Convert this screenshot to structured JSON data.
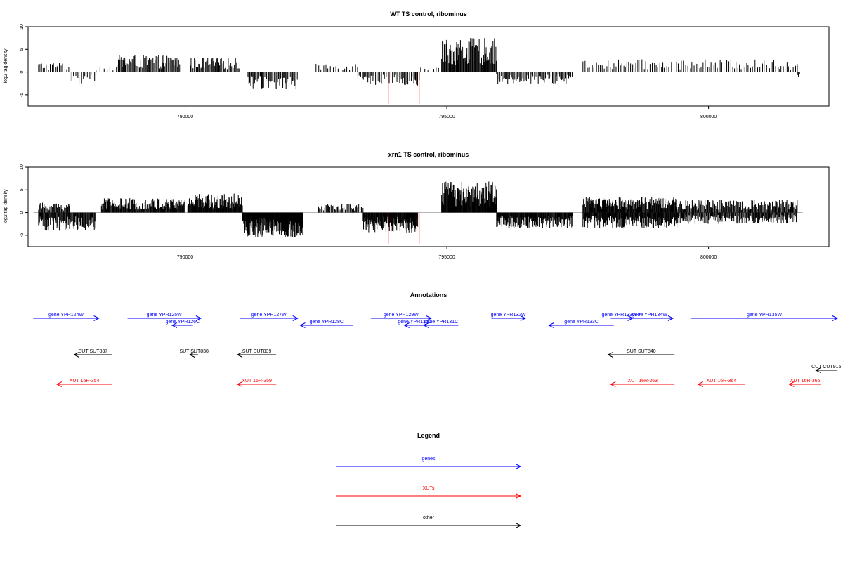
{
  "chart_data": [
    {
      "type": "bar",
      "title": "WT TS control, ribominus",
      "ylabel": "log2 tag density",
      "xlim": [
        787000,
        802300
      ],
      "ylim": [
        -7.5,
        10
      ],
      "x_ticks": [
        790000,
        795000,
        800000
      ],
      "x_tick_labels": [
        "790000",
        "795000",
        "800000"
      ],
      "y_ticks": [
        -5,
        0,
        5,
        10
      ],
      "y_tick_labels": [
        "-5",
        "0",
        "5",
        "10"
      ],
      "grid": false,
      "bar_color": "#000000",
      "highlight_color": "#ff0000",
      "segments": [
        {
          "range": [
            787200,
            787800
          ],
          "amp": 2.2,
          "sign": 1,
          "step": 35
        },
        {
          "range": [
            787800,
            788300
          ],
          "amp": 2.8,
          "sign": -1,
          "step": 35
        },
        {
          "range": [
            788300,
            788700
          ],
          "amp": 1.5,
          "sign": 1,
          "step": 60
        },
        {
          "range": [
            788700,
            789900
          ],
          "amp": 3.8,
          "sign": 1,
          "step": 18
        },
        {
          "range": [
            790100,
            791050
          ],
          "amp": 3.2,
          "sign": 1,
          "step": 20
        },
        {
          "range": [
            791200,
            792150
          ],
          "amp": 3.8,
          "sign": -1,
          "step": 18
        },
        {
          "range": [
            792500,
            793300
          ],
          "amp": 2.0,
          "sign": 1,
          "step": 45
        },
        {
          "range": [
            793300,
            794500
          ],
          "amp": 3.0,
          "sign": -1,
          "step": 25
        },
        {
          "range": [
            794500,
            794850
          ],
          "amp": 1.2,
          "sign": 1,
          "step": 60
        },
        {
          "range": [
            794900,
            795950
          ],
          "amp": 7.5,
          "sign": 1,
          "step": 12
        },
        {
          "range": [
            795950,
            797400
          ],
          "amp": 2.6,
          "sign": -1,
          "step": 22
        },
        {
          "range": [
            797600,
            801700
          ],
          "amp": 2.8,
          "sign": 1,
          "step": 40
        },
        {
          "range": [
            801700,
            801750
          ],
          "amp": 1.2,
          "sign": -1,
          "step": 20
        }
      ],
      "highlights": [
        {
          "x": 793880,
          "y": -7.0
        },
        {
          "x": 794470,
          "y": -7.0
        }
      ]
    },
    {
      "type": "bar",
      "title": "xrn1 TS control, ribominus",
      "ylabel": "log2 tag density",
      "xlim": [
        787000,
        802300
      ],
      "ylim": [
        -7.5,
        10
      ],
      "x_ticks": [
        790000,
        795000,
        800000
      ],
      "x_tick_labels": [
        "790000",
        "795000",
        "800000"
      ],
      "y_ticks": [
        -5,
        0,
        5,
        10
      ],
      "y_tick_labels": [
        "-5",
        "0",
        "5",
        "10"
      ],
      "grid": false,
      "bar_color": "#000000",
      "highlight_color": "#ff0000",
      "segments": [
        {
          "range": [
            787200,
            787800
          ],
          "amp": 2.2,
          "sign": 1,
          "step": 14
        },
        {
          "range": [
            787200,
            788300
          ],
          "amp": 4.0,
          "sign": -1,
          "step": 12
        },
        {
          "range": [
            788400,
            790000
          ],
          "amp": 3.2,
          "sign": 1,
          "step": 11
        },
        {
          "range": [
            790050,
            791100
          ],
          "amp": 4.2,
          "sign": 1,
          "step": 9
        },
        {
          "range": [
            791100,
            792250
          ],
          "amp": 5.5,
          "sign": -1,
          "step": 7
        },
        {
          "range": [
            792550,
            793400
          ],
          "amp": 2.0,
          "sign": 1,
          "step": 20
        },
        {
          "range": [
            793400,
            794450
          ],
          "amp": 4.5,
          "sign": -1,
          "step": 9
        },
        {
          "range": [
            794900,
            795950
          ],
          "amp": 7.0,
          "sign": 1,
          "step": 9
        },
        {
          "range": [
            795950,
            797400
          ],
          "amp": 3.5,
          "sign": -1,
          "step": 10
        },
        {
          "range": [
            797600,
            799400
          ],
          "amp": 3.5,
          "sign": 1,
          "step": 11
        },
        {
          "range": [
            797600,
            799400
          ],
          "amp": 3.5,
          "sign": -1,
          "step": 11
        },
        {
          "range": [
            799400,
            801700
          ],
          "amp": 2.8,
          "sign": 1,
          "step": 14
        },
        {
          "range": [
            799400,
            801700
          ],
          "amp": 2.5,
          "sign": -1,
          "step": 14
        }
      ],
      "highlights": [
        {
          "x": 793880,
          "y": -7.0
        },
        {
          "x": 794470,
          "y": -7.0
        }
      ]
    },
    {
      "type": "diagram",
      "title": "Annotations",
      "features": [
        {
          "label": "gene YPR124W",
          "category": "genes",
          "start": 787100,
          "end": 788350,
          "row": 0,
          "strand": "+"
        },
        {
          "label": "gene YPR125W",
          "category": "genes",
          "start": 788900,
          "end": 790300,
          "row": 0,
          "strand": "+"
        },
        {
          "label": "gene YPR126C",
          "category": "genes",
          "start": 789750,
          "end": 790150,
          "row": 1,
          "strand": "-"
        },
        {
          "label": "gene YPR127W",
          "category": "genes",
          "start": 791050,
          "end": 792150,
          "row": 0,
          "strand": "+"
        },
        {
          "label": "gene YPR128C",
          "category": "genes",
          "start": 792200,
          "end": 793200,
          "row": 1,
          "strand": "-"
        },
        {
          "label": "gene YPR129W",
          "category": "genes",
          "start": 793550,
          "end": 794700,
          "row": 0,
          "strand": "+"
        },
        {
          "label": "gene YPR130C",
          "category": "genes",
          "start": 794190,
          "end": 794590,
          "row": 1,
          "strand": "-"
        },
        {
          "label": "gene YPR131C",
          "category": "genes",
          "start": 794560,
          "end": 795220,
          "row": 1,
          "strand": "-"
        },
        {
          "label": "gene YPR132W",
          "category": "genes",
          "start": 795850,
          "end": 796500,
          "row": 0,
          "strand": "+"
        },
        {
          "label": "gene YPR133C",
          "category": "genes",
          "start": 796950,
          "end": 798190,
          "row": 1,
          "strand": "-"
        },
        {
          "label": "gene YPR133W-A",
          "category": "genes",
          "start": 798130,
          "end": 798550,
          "row": 0,
          "strand": "+"
        },
        {
          "label": "gene YPR134W",
          "category": "genes",
          "start": 798430,
          "end": 799320,
          "row": 0,
          "strand": "+"
        },
        {
          "label": "gene YPR135W",
          "category": "genes",
          "start": 799670,
          "end": 802460,
          "row": 0,
          "strand": "+"
        },
        {
          "label": "SUT SUT837",
          "category": "other",
          "start": 787880,
          "end": 788600,
          "row": 2,
          "strand": "-"
        },
        {
          "label": "SUT SUT838",
          "category": "other",
          "start": 790090,
          "end": 790250,
          "row": 2,
          "strand": "-"
        },
        {
          "label": "SUT SUT839",
          "category": "other",
          "start": 791000,
          "end": 791740,
          "row": 2,
          "strand": "-"
        },
        {
          "label": "SUT SUT840",
          "category": "other",
          "start": 798080,
          "end": 799350,
          "row": 2,
          "strand": "-"
        },
        {
          "label": "CUT CUT915",
          "category": "other",
          "start": 802050,
          "end": 802450,
          "row": 3,
          "strand": "-"
        },
        {
          "label": "XUT 16R-354",
          "category": "XUTs",
          "start": 787550,
          "end": 788600,
          "row": 4,
          "strand": "-"
        },
        {
          "label": "XUT 16R-359",
          "category": "XUTs",
          "start": 791000,
          "end": 791740,
          "row": 4,
          "strand": "-"
        },
        {
          "label": "XUT 16R-363",
          "category": "XUTs",
          "start": 798130,
          "end": 799350,
          "row": 4,
          "strand": "-"
        },
        {
          "label": "XUT 16R-364",
          "category": "XUTs",
          "start": 799800,
          "end": 800690,
          "row": 4,
          "strand": "-"
        },
        {
          "label": "XUT 16R-366",
          "category": "XUTs",
          "start": 801540,
          "end": 802150,
          "row": 4,
          "strand": "-"
        }
      ]
    }
  ],
  "legend": {
    "title": "Legend",
    "entries": [
      {
        "label": "genes",
        "color": "#0000ff"
      },
      {
        "label": "XUTs",
        "color": "#ff0000"
      },
      {
        "label": "other",
        "color": "#000000"
      }
    ]
  },
  "colors": {
    "genes": "#0000ff",
    "XUTs": "#ff0000",
    "other": "#000000",
    "axis": "#000000",
    "baseline": "#aaaaaa"
  }
}
